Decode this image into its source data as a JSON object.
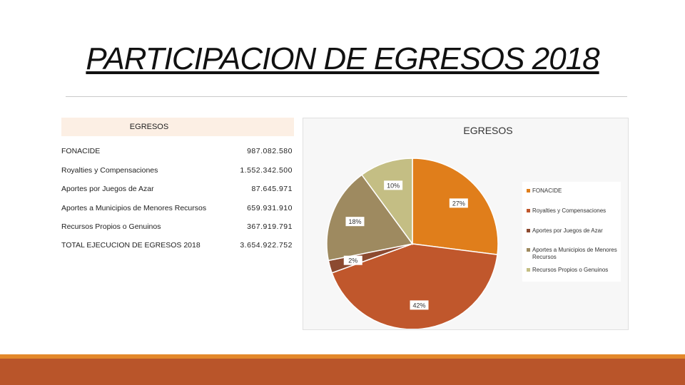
{
  "slide": {
    "title": "PARTICIPACION DE EGRESOS 2018"
  },
  "table": {
    "header": "EGRESOS",
    "rows": [
      {
        "label": "FONACIDE",
        "value": "987.082.580"
      },
      {
        "label": "Royalties y Compensaciones",
        "value": "1.552.342.500"
      },
      {
        "label": "Aportes por Juegos de Azar",
        "value": "87.645.971"
      },
      {
        "label": "Aportes a Municipios de Menores Recursos",
        "value": "659.931.910"
      },
      {
        "label": "Recursos Propios o Genuinos",
        "value": "367.919.791"
      },
      {
        "label": "TOTAL EJECUCION DE EGRESOS 2018",
        "value": "3.654.922.752"
      }
    ]
  },
  "chart_data": {
    "type": "pie",
    "title": "EGRESOS",
    "categories": [
      "FONACIDE",
      "Royalties y Compensaciones",
      "Aportes por Juegos de Azar",
      "Aportes a Municipios de Menores Recursos",
      "Recursos Propios o Genuinos"
    ],
    "values": [
      987082580,
      1552342500,
      87645971,
      659931910,
      367919791
    ],
    "data_labels": [
      "27%",
      "42%",
      "2%",
      "18%",
      "10%"
    ],
    "colors": [
      "#e07e1b",
      "#c0572c",
      "#8c4a30",
      "#9e8a60",
      "#c4be84"
    ],
    "legend_position": "right"
  },
  "theme": {
    "accent": "#b9552a",
    "stripe": "#e3882a"
  }
}
